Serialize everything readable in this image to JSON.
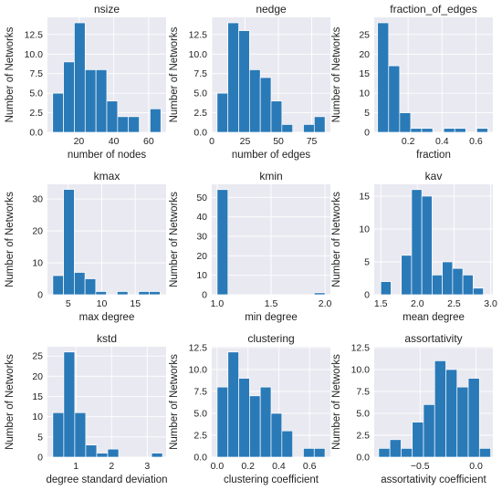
{
  "chart_data": [
    {
      "type": "bar",
      "title": "nsize",
      "xlabel": "number of nodes",
      "ylabel": "Number of Networks",
      "xlim": [
        2,
        70
      ],
      "ylim": [
        0,
        14.7
      ],
      "xticks": [
        {
          "v": 20,
          "label": "20"
        },
        {
          "v": 40,
          "label": "40"
        },
        {
          "v": 60,
          "label": "60"
        }
      ],
      "yticks": [
        {
          "v": 0,
          "label": "0.0"
        },
        {
          "v": 2.5,
          "label": "2.5"
        },
        {
          "v": 5,
          "label": "5.0"
        },
        {
          "v": 7.5,
          "label": "7.5"
        },
        {
          "v": 10,
          "label": "10.0"
        },
        {
          "v": 12.5,
          "label": "12.5"
        }
      ],
      "bin_edges": [
        5,
        11.2,
        17.4,
        23.6,
        29.8,
        36,
        42.2,
        48.4,
        54.6,
        60.8,
        67
      ],
      "values": [
        5,
        9,
        14,
        8,
        8,
        4,
        2,
        2,
        0,
        3
      ]
    },
    {
      "type": "bar",
      "title": "nedge",
      "xlabel": "number of edges",
      "ylabel": "Number of Networks",
      "xlim": [
        0,
        89
      ],
      "ylim": [
        0,
        14.7
      ],
      "xticks": [
        {
          "v": 0,
          "label": "0"
        },
        {
          "v": 25,
          "label": "25"
        },
        {
          "v": 50,
          "label": "50"
        },
        {
          "v": 75,
          "label": "75"
        }
      ],
      "yticks": [
        {
          "v": 0,
          "label": "0.0"
        },
        {
          "v": 2.5,
          "label": "2.5"
        },
        {
          "v": 5,
          "label": "5.0"
        },
        {
          "v": 7.5,
          "label": "7.5"
        },
        {
          "v": 10,
          "label": "10.0"
        },
        {
          "v": 12.5,
          "label": "12.5"
        }
      ],
      "bin_edges": [
        4,
        12.1,
        20.2,
        28.3,
        36.4,
        44.5,
        52.6,
        60.7,
        68.8,
        76.9,
        85
      ],
      "values": [
        5,
        14,
        13,
        8,
        7,
        4,
        1,
        0,
        1,
        2
      ]
    },
    {
      "type": "bar",
      "title": "fraction_of_edges",
      "xlabel": "fraction",
      "ylabel": "Number of Networks",
      "xlim": [
        0,
        0.7
      ],
      "ylim": [
        0,
        29.4
      ],
      "xticks": [
        {
          "v": 0.2,
          "label": "0.2"
        },
        {
          "v": 0.4,
          "label": "0.4"
        },
        {
          "v": 0.6,
          "label": "0.6"
        }
      ],
      "yticks": [
        {
          "v": 0,
          "label": "0"
        },
        {
          "v": 5,
          "label": "5"
        },
        {
          "v": 10,
          "label": "10"
        },
        {
          "v": 15,
          "label": "15"
        },
        {
          "v": 20,
          "label": "20"
        },
        {
          "v": 25,
          "label": "25"
        }
      ],
      "bin_edges": [
        0.02,
        0.085,
        0.15,
        0.215,
        0.28,
        0.345,
        0.41,
        0.475,
        0.54,
        0.605,
        0.67
      ],
      "values": [
        28,
        17,
        5,
        1,
        1,
        0,
        1,
        1,
        0,
        1
      ]
    },
    {
      "type": "bar",
      "title": "kmax",
      "xlabel": "max degree",
      "ylabel": "Number of Networks",
      "xlim": [
        1.9,
        19.6
      ],
      "ylim": [
        0,
        34.6
      ],
      "xticks": [
        {
          "v": 5,
          "label": "5"
        },
        {
          "v": 10,
          "label": "10"
        },
        {
          "v": 15,
          "label": "15"
        }
      ],
      "yticks": [
        {
          "v": 0,
          "label": "0"
        },
        {
          "v": 10,
          "label": "10"
        },
        {
          "v": 20,
          "label": "20"
        },
        {
          "v": 30,
          "label": "30"
        }
      ],
      "bin_edges": [
        2.7,
        4.3,
        5.9,
        7.5,
        9.1,
        10.7,
        12.3,
        13.9,
        15.5,
        17.1,
        18.7
      ],
      "values": [
        6,
        33,
        7,
        5,
        1,
        0,
        1,
        0,
        1,
        1
      ]
    },
    {
      "type": "bar",
      "title": "kmin",
      "xlabel": "min degree",
      "ylabel": "Number of Networks",
      "xlim": [
        0.95,
        2.05
      ],
      "ylim": [
        0,
        56.7
      ],
      "xticks": [
        {
          "v": 1.0,
          "label": "1.0"
        },
        {
          "v": 1.5,
          "label": "1.5"
        },
        {
          "v": 2.0,
          "label": "2.0"
        }
      ],
      "yticks": [
        {
          "v": 0,
          "label": "0"
        },
        {
          "v": 10,
          "label": "10"
        },
        {
          "v": 20,
          "label": "20"
        },
        {
          "v": 30,
          "label": "30"
        },
        {
          "v": 40,
          "label": "40"
        },
        {
          "v": 50,
          "label": "50"
        }
      ],
      "bin_edges": [
        1.0,
        1.1,
        1.2,
        1.3,
        1.4,
        1.5,
        1.6,
        1.7,
        1.8,
        1.9,
        2.0
      ],
      "values": [
        54,
        0,
        0,
        0,
        0,
        0,
        0,
        0,
        0,
        1
      ]
    },
    {
      "type": "bar",
      "title": "kav",
      "xlabel": "mean degree",
      "ylabel": "Number of Networks",
      "xlim": [
        1.41,
        3.03
      ],
      "ylim": [
        0,
        16.8
      ],
      "xticks": [
        {
          "v": 1.5,
          "label": "1.5"
        },
        {
          "v": 2.0,
          "label": "2.0"
        },
        {
          "v": 2.5,
          "label": "2.5"
        },
        {
          "v": 3.0,
          "label": "3.0"
        }
      ],
      "yticks": [
        {
          "v": 0,
          "label": "0"
        },
        {
          "v": 5,
          "label": "5"
        },
        {
          "v": 10,
          "label": "10"
        },
        {
          "v": 15,
          "label": "15"
        }
      ],
      "bin_edges": [
        1.5,
        1.64,
        1.78,
        1.92,
        2.06,
        2.2,
        2.34,
        2.48,
        2.62,
        2.76,
        2.9
      ],
      "values": [
        2,
        0,
        6,
        16,
        15,
        3,
        5,
        4,
        3,
        1
      ]
    },
    {
      "type": "bar",
      "title": "kstd",
      "xlabel": "degree standard deviation",
      "ylabel": "Number of Networks",
      "xlim": [
        0.2,
        3.53
      ],
      "ylim": [
        0,
        27.3
      ],
      "xticks": [
        {
          "v": 1,
          "label": "1"
        },
        {
          "v": 2,
          "label": "2"
        },
        {
          "v": 3,
          "label": "3"
        }
      ],
      "yticks": [
        {
          "v": 0,
          "label": "0"
        },
        {
          "v": 5,
          "label": "5"
        },
        {
          "v": 10,
          "label": "10"
        },
        {
          "v": 15,
          "label": "15"
        },
        {
          "v": 20,
          "label": "20"
        },
        {
          "v": 25,
          "label": "25"
        }
      ],
      "bin_edges": [
        0.35,
        0.658,
        0.966,
        1.274,
        1.582,
        1.89,
        2.198,
        2.506,
        2.814,
        3.122,
        3.43
      ],
      "values": [
        11,
        26,
        11,
        3,
        1,
        2,
        0,
        0,
        0,
        1
      ]
    },
    {
      "type": "bar",
      "title": "clustering",
      "xlabel": "clustering coefficient",
      "ylabel": "Number of Networks",
      "xlim": [
        -0.035,
        0.735
      ],
      "ylim": [
        0,
        12.6
      ],
      "xticks": [
        {
          "v": 0,
          "label": "0.0"
        },
        {
          "v": 0.2,
          "label": "0.2"
        },
        {
          "v": 0.4,
          "label": "0.4"
        },
        {
          "v": 0.6,
          "label": "0.6"
        }
      ],
      "yticks": [
        {
          "v": 0,
          "label": "0.0"
        },
        {
          "v": 2.5,
          "label": "2.5"
        },
        {
          "v": 5,
          "label": "5.0"
        },
        {
          "v": 7.5,
          "label": "7.5"
        },
        {
          "v": 10,
          "label": "10.0"
        },
        {
          "v": 12.5,
          "label": "12.5"
        }
      ],
      "bin_edges": [
        0,
        0.07,
        0.14,
        0.21,
        0.28,
        0.35,
        0.42,
        0.49,
        0.56,
        0.63,
        0.7
      ],
      "values": [
        8,
        12,
        9,
        7,
        8,
        5,
        3,
        0,
        1,
        1
      ]
    },
    {
      "type": "bar",
      "title": "assortativity",
      "xlabel": "assortativity coefficient",
      "ylabel": "Number of Networks",
      "xlim": [
        -0.91,
        0.15
      ],
      "ylim": [
        0,
        12.6
      ],
      "xticks": [
        {
          "v": -0.5,
          "label": "−0.5"
        },
        {
          "v": 0,
          "label": "0.0"
        }
      ],
      "yticks": [
        {
          "v": 0,
          "label": "0.0"
        },
        {
          "v": 2.5,
          "label": "2.5"
        },
        {
          "v": 5,
          "label": "5.0"
        },
        {
          "v": 7.5,
          "label": "7.5"
        },
        {
          "v": 10,
          "label": "10.0"
        },
        {
          "v": 12.5,
          "label": "12.5"
        }
      ],
      "bin_edges": [
        -0.87,
        -0.77,
        -0.67,
        -0.57,
        -0.47,
        -0.37,
        -0.27,
        -0.17,
        -0.07,
        0.03,
        0.13
      ],
      "values": [
        1,
        2,
        1,
        4,
        6,
        11,
        10,
        8,
        9,
        1
      ]
    }
  ]
}
